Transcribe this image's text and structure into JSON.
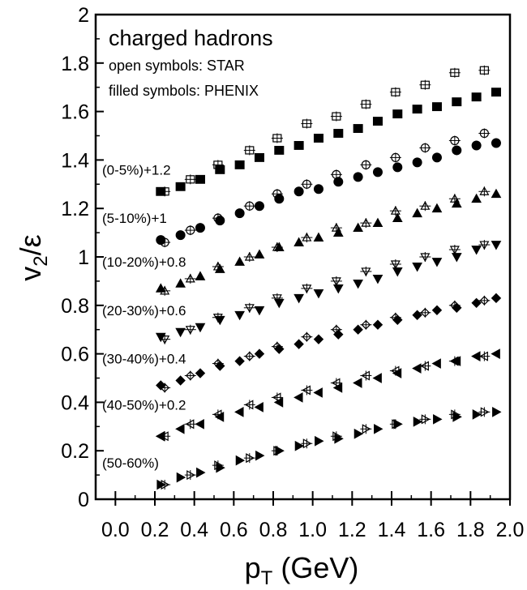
{
  "chart_data": {
    "type": "scatter",
    "title": "",
    "annotations": {
      "heading": "charged hadrons",
      "open_note": "open symbols: STAR",
      "filled_note": "filled symbols: PHENIX"
    },
    "xlabel_main": "p",
    "xlabel_sub": "T",
    "xlabel_rest": " (GeV)",
    "ylabel_main": "v",
    "ylabel_sub": "2",
    "ylabel_rest": "/ε",
    "xlim": [
      -0.1,
      2.0
    ],
    "ylim": [
      0,
      2
    ],
    "xticks": [
      "0.0",
      "0.2",
      "0.4",
      "0.6",
      "0.8",
      "1.0",
      "1.2",
      "1.4",
      "1.6",
      "1.8",
      "2.0"
    ],
    "xtick_values": [
      0.0,
      0.2,
      0.4,
      0.6,
      0.8,
      1.0,
      1.2,
      1.4,
      1.6,
      1.8,
      2.0
    ],
    "yticks": [
      "0",
      "0.2",
      "0.4",
      "0.6",
      "0.8",
      "1",
      "1.2",
      "1.4",
      "1.6",
      "1.8",
      "2"
    ],
    "ytick_values": [
      0,
      0.2,
      0.4,
      0.6,
      0.8,
      1,
      1.2,
      1.4,
      1.6,
      1.8,
      2
    ],
    "series": [
      {
        "name": "(0-5%)+1.2",
        "marker": "square",
        "label_y": 1.36,
        "phenix": {
          "x": [
            0.23,
            0.33,
            0.43,
            0.53,
            0.63,
            0.73,
            0.83,
            0.93,
            1.03,
            1.13,
            1.23,
            1.33,
            1.43,
            1.53,
            1.63,
            1.73,
            1.83,
            1.93
          ],
          "y": [
            1.27,
            1.29,
            1.32,
            1.36,
            1.38,
            1.41,
            1.44,
            1.46,
            1.49,
            1.51,
            1.53,
            1.56,
            1.59,
            1.61,
            1.62,
            1.64,
            1.66,
            1.68
          ]
        },
        "star": {
          "x": [
            0.25,
            0.38,
            0.52,
            0.68,
            0.82,
            0.97,
            1.12,
            1.27,
            1.42,
            1.57,
            1.72,
            1.87
          ],
          "y": [
            1.27,
            1.32,
            1.38,
            1.44,
            1.49,
            1.55,
            1.58,
            1.63,
            1.68,
            1.71,
            1.76,
            1.77
          ]
        }
      },
      {
        "name": "(5-10%)+1",
        "marker": "circle",
        "label_y": 1.16,
        "phenix": {
          "x": [
            0.23,
            0.33,
            0.43,
            0.53,
            0.63,
            0.73,
            0.83,
            0.93,
            1.03,
            1.13,
            1.23,
            1.33,
            1.43,
            1.53,
            1.63,
            1.73,
            1.83,
            1.93
          ],
          "y": [
            1.07,
            1.09,
            1.12,
            1.15,
            1.18,
            1.21,
            1.24,
            1.27,
            1.28,
            1.31,
            1.33,
            1.35,
            1.37,
            1.39,
            1.41,
            1.44,
            1.46,
            1.47
          ]
        },
        "star": {
          "x": [
            0.25,
            0.38,
            0.52,
            0.68,
            0.82,
            0.97,
            1.12,
            1.27,
            1.42,
            1.57,
            1.72,
            1.87
          ],
          "y": [
            1.06,
            1.11,
            1.16,
            1.21,
            1.26,
            1.3,
            1.34,
            1.38,
            1.41,
            1.45,
            1.48,
            1.51
          ]
        }
      },
      {
        "name": "(10-20%)+0.8",
        "marker": "triangle-up",
        "label_y": 0.98,
        "phenix": {
          "x": [
            0.23,
            0.33,
            0.43,
            0.53,
            0.63,
            0.73,
            0.83,
            0.93,
            1.03,
            1.13,
            1.23,
            1.33,
            1.43,
            1.53,
            1.63,
            1.73,
            1.83,
            1.93
          ],
          "y": [
            0.87,
            0.89,
            0.92,
            0.95,
            0.98,
            1.01,
            1.04,
            1.06,
            1.08,
            1.1,
            1.12,
            1.14,
            1.16,
            1.18,
            1.2,
            1.22,
            1.24,
            1.26
          ]
        },
        "star": {
          "x": [
            0.25,
            0.38,
            0.52,
            0.68,
            0.82,
            0.97,
            1.12,
            1.27,
            1.42,
            1.57,
            1.72,
            1.87
          ],
          "y": [
            0.86,
            0.91,
            0.96,
            1.0,
            1.04,
            1.08,
            1.12,
            1.14,
            1.19,
            1.21,
            1.24,
            1.27
          ]
        }
      },
      {
        "name": "(20-30%)+0.6",
        "marker": "triangle-down",
        "label_y": 0.78,
        "phenix": {
          "x": [
            0.23,
            0.33,
            0.43,
            0.53,
            0.63,
            0.73,
            0.83,
            0.93,
            1.03,
            1.13,
            1.23,
            1.33,
            1.43,
            1.53,
            1.63,
            1.73,
            1.83,
            1.93
          ],
          "y": [
            0.67,
            0.69,
            0.71,
            0.74,
            0.76,
            0.78,
            0.81,
            0.83,
            0.85,
            0.87,
            0.89,
            0.91,
            0.94,
            0.96,
            0.98,
            1.0,
            1.03,
            1.05
          ]
        },
        "star": {
          "x": [
            0.25,
            0.38,
            0.52,
            0.68,
            0.82,
            0.97,
            1.12,
            1.27,
            1.42,
            1.57,
            1.72,
            1.87
          ],
          "y": [
            0.66,
            0.7,
            0.75,
            0.79,
            0.83,
            0.87,
            0.9,
            0.94,
            0.97,
            1.0,
            1.03,
            1.05
          ]
        }
      },
      {
        "name": "(30-40%)+0.4",
        "marker": "diamond",
        "label_y": 0.58,
        "phenix": {
          "x": [
            0.23,
            0.33,
            0.43,
            0.53,
            0.63,
            0.73,
            0.83,
            0.93,
            1.03,
            1.13,
            1.23,
            1.33,
            1.43,
            1.53,
            1.63,
            1.73,
            1.83,
            1.93
          ],
          "y": [
            0.47,
            0.49,
            0.52,
            0.55,
            0.57,
            0.6,
            0.62,
            0.64,
            0.66,
            0.68,
            0.7,
            0.72,
            0.74,
            0.76,
            0.78,
            0.79,
            0.81,
            0.83
          ]
        },
        "star": {
          "x": [
            0.25,
            0.38,
            0.52,
            0.68,
            0.82,
            0.97,
            1.12,
            1.27,
            1.42,
            1.57,
            1.72,
            1.87
          ],
          "y": [
            0.46,
            0.51,
            0.56,
            0.59,
            0.63,
            0.67,
            0.7,
            0.72,
            0.75,
            0.77,
            0.8,
            0.82
          ]
        }
      },
      {
        "name": "(40-50%)+0.2",
        "marker": "triangle-left",
        "label_y": 0.39,
        "phenix": {
          "x": [
            0.23,
            0.33,
            0.43,
            0.53,
            0.63,
            0.73,
            0.83,
            0.93,
            1.03,
            1.13,
            1.23,
            1.33,
            1.43,
            1.53,
            1.63,
            1.73,
            1.83,
            1.93
          ],
          "y": [
            0.26,
            0.29,
            0.31,
            0.34,
            0.36,
            0.38,
            0.4,
            0.42,
            0.44,
            0.46,
            0.48,
            0.5,
            0.52,
            0.54,
            0.56,
            0.57,
            0.59,
            0.6
          ]
        },
        "star": {
          "x": [
            0.25,
            0.38,
            0.52,
            0.68,
            0.82,
            0.97,
            1.12,
            1.27,
            1.42,
            1.57,
            1.72,
            1.87
          ],
          "y": [
            0.26,
            0.31,
            0.35,
            0.39,
            0.42,
            0.45,
            0.48,
            0.51,
            0.53,
            0.55,
            0.57,
            0.59
          ]
        }
      },
      {
        "name": "(50-60%)",
        "marker": "triangle-right",
        "label_y": 0.15,
        "phenix": {
          "x": [
            0.23,
            0.33,
            0.43,
            0.53,
            0.63,
            0.73,
            0.83,
            0.93,
            1.03,
            1.13,
            1.23,
            1.33,
            1.43,
            1.53,
            1.63,
            1.73,
            1.83,
            1.93
          ],
          "y": [
            0.06,
            0.09,
            0.11,
            0.13,
            0.16,
            0.18,
            0.2,
            0.22,
            0.24,
            0.25,
            0.27,
            0.29,
            0.31,
            0.32,
            0.33,
            0.34,
            0.35,
            0.36
          ]
        },
        "star": {
          "x": [
            0.25,
            0.38,
            0.52,
            0.68,
            0.82,
            0.97,
            1.12,
            1.27,
            1.42,
            1.57,
            1.72,
            1.87
          ],
          "y": [
            0.06,
            0.1,
            0.14,
            0.17,
            0.2,
            0.23,
            0.26,
            0.29,
            0.31,
            0.33,
            0.35,
            0.36
          ]
        }
      }
    ]
  }
}
